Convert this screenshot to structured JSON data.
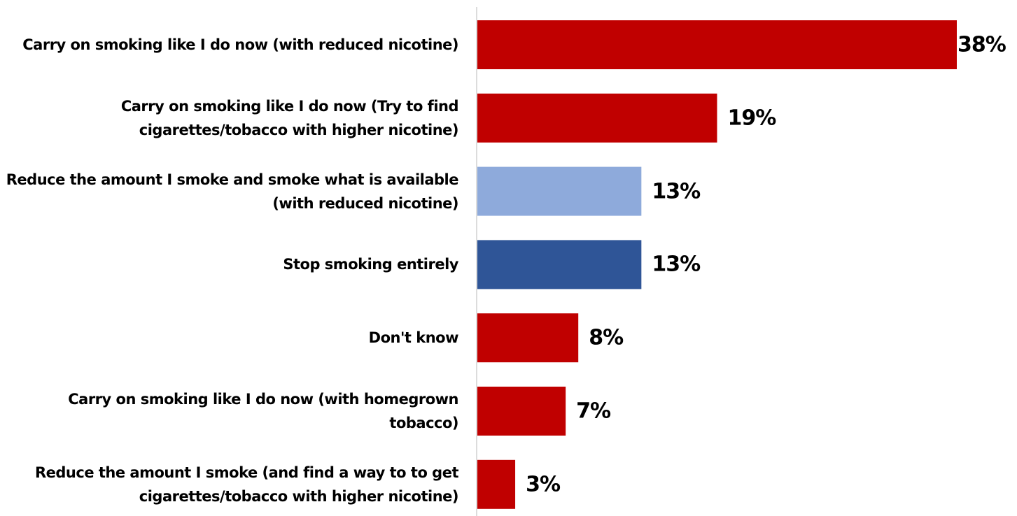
{
  "chart_data": {
    "type": "bar",
    "orientation": "horizontal",
    "categories": [
      "Carry on smoking like I do now (with reduced nicotine)",
      "Carry on smoking like I do now (Try to find cigarettes/tobacco with higher nicotine)",
      "Reduce the amount I smoke and smoke what is available (with reduced nicotine)",
      "Stop smoking entirely",
      "Don't know",
      "Carry on smoking like I do now (with homegrown tobacco)",
      "Reduce the amount I smoke (and find a way to to get cigarettes/tobacco with higher nicotine)"
    ],
    "values": [
      38,
      19,
      13,
      13,
      8,
      7,
      3
    ],
    "value_labels": [
      "38%",
      "19%",
      "13%",
      "13%",
      "8%",
      "7%",
      "3%"
    ],
    "colors": [
      "#c00000",
      "#c00000",
      "#8eaadb",
      "#2f5597",
      "#c00000",
      "#c00000",
      "#c00000"
    ]
  }
}
